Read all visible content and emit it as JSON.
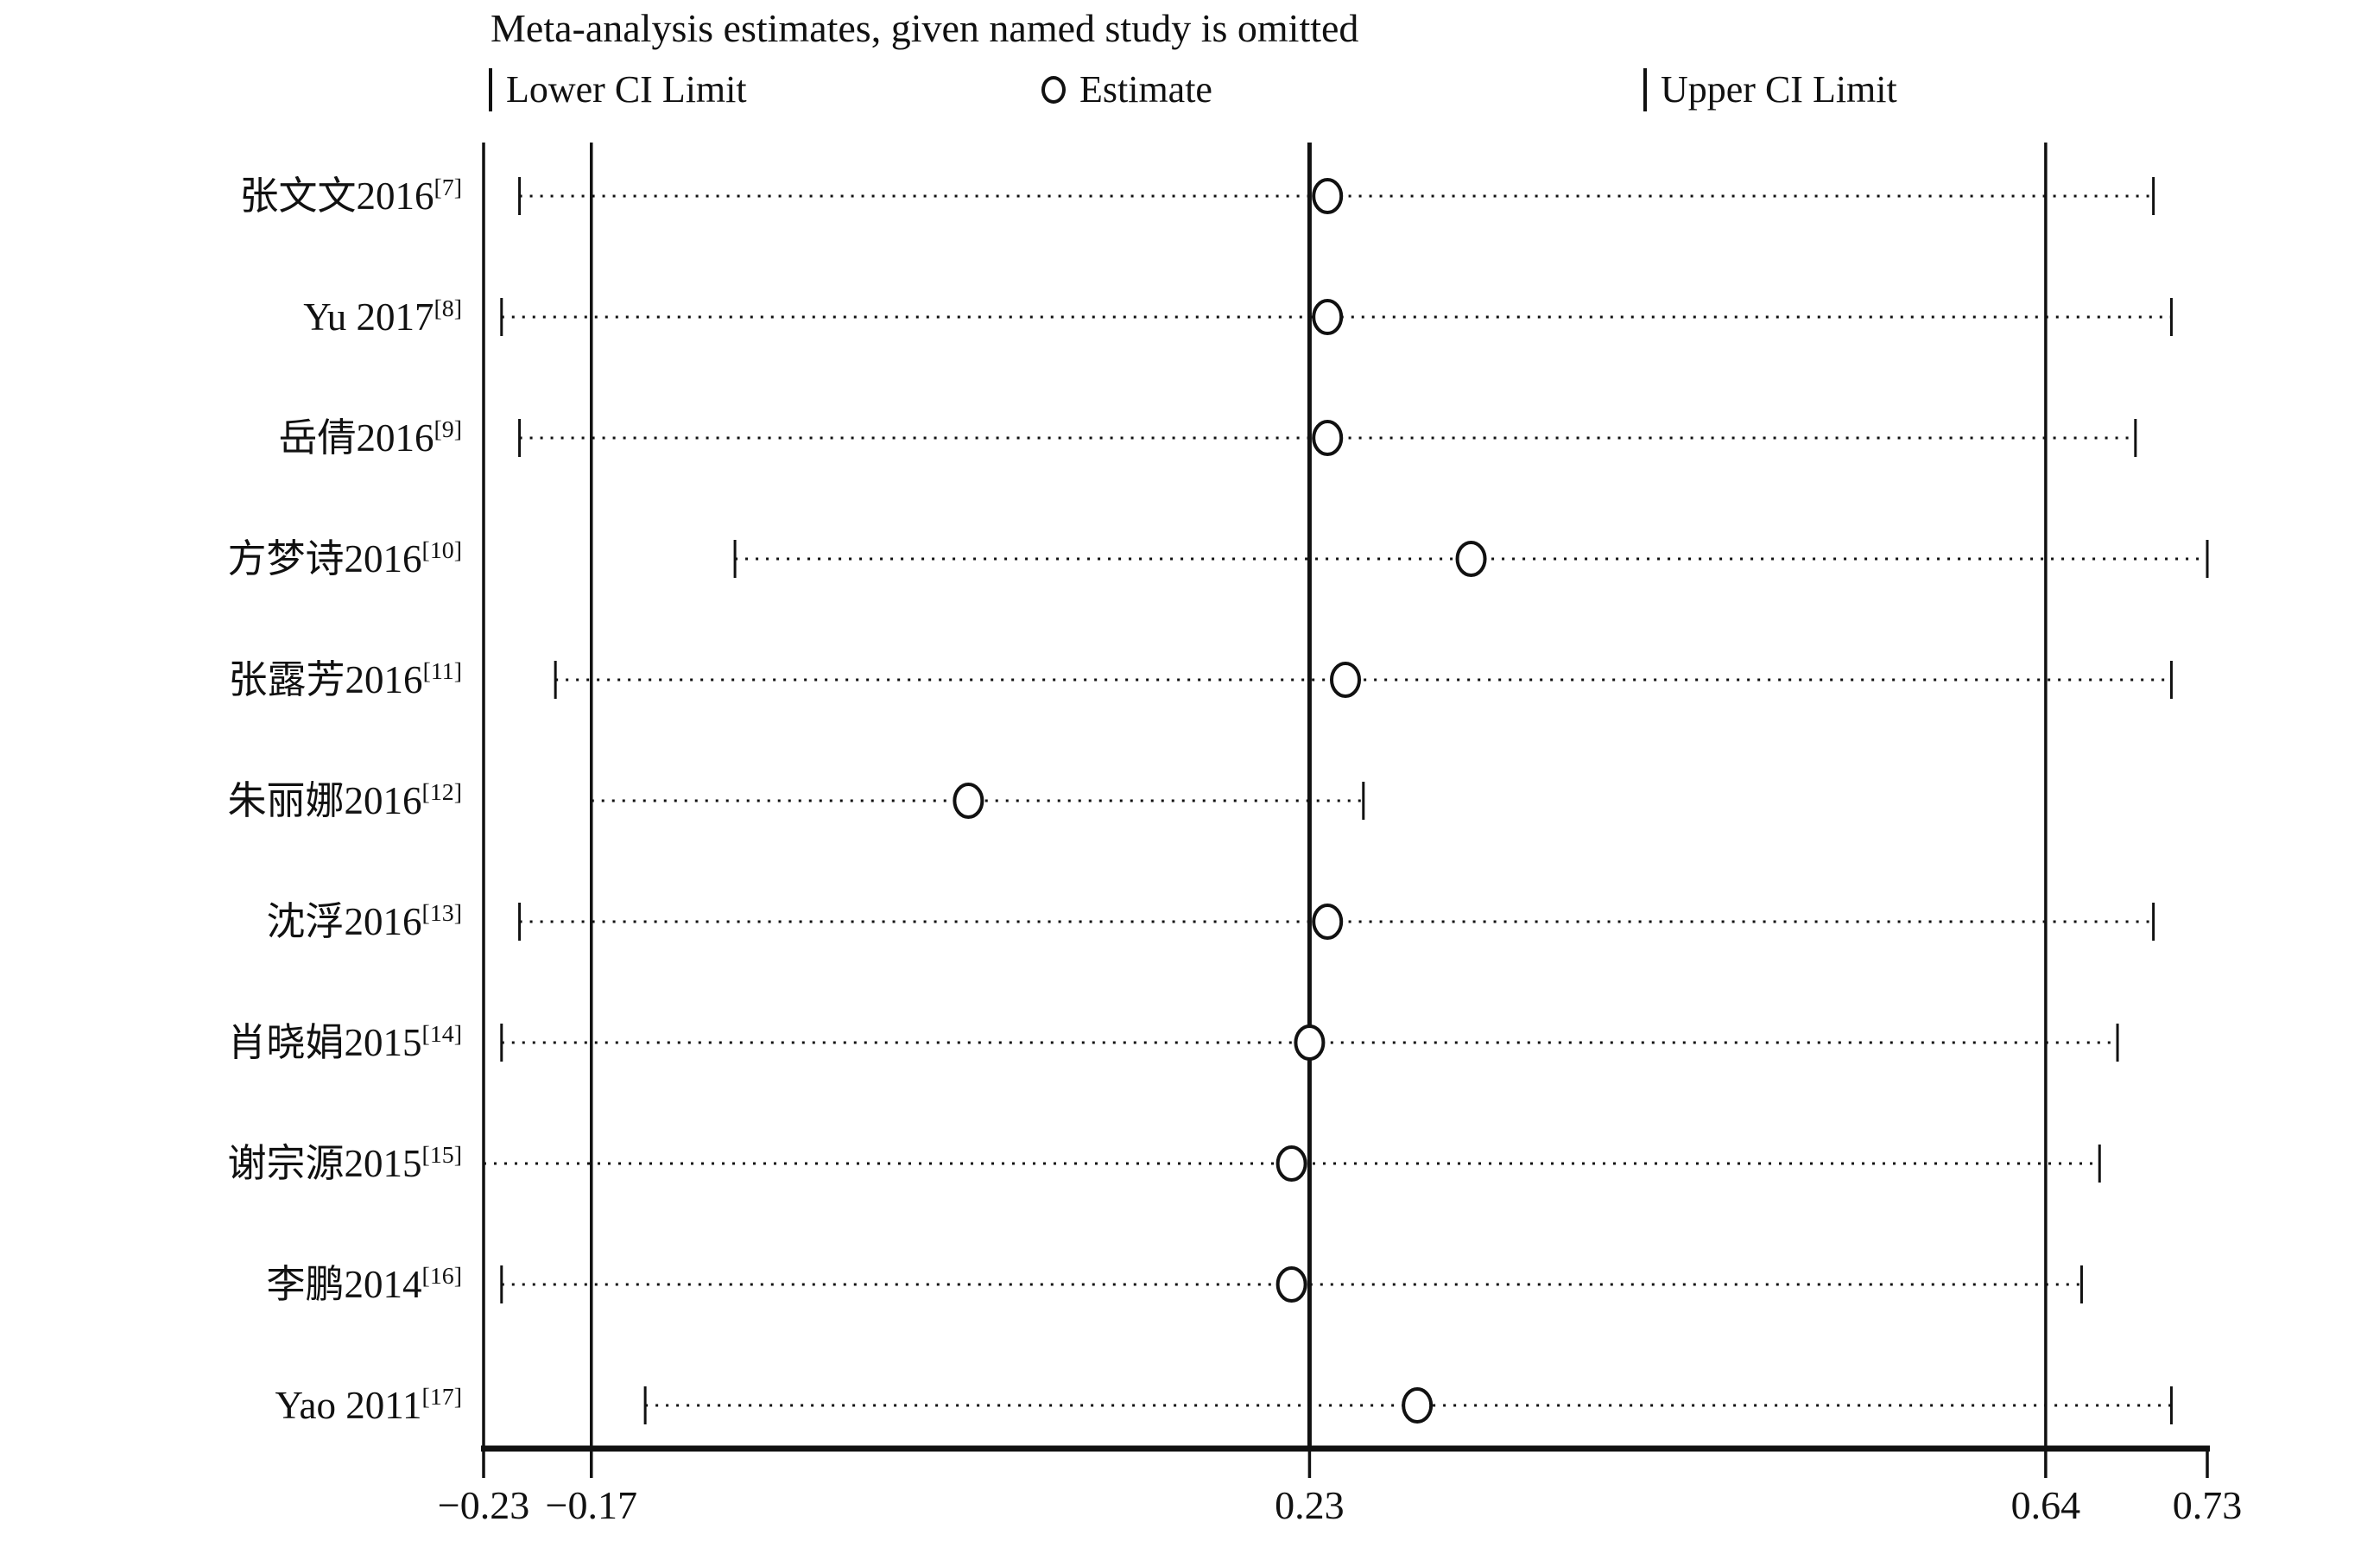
{
  "colors": {
    "ink": "#111111",
    "background": "#ffffff"
  },
  "chart_data": {
    "type": "scatter",
    "subtype": "leave-one-out meta-analysis sensitivity (forest) plot",
    "title": "Meta-analysis estimates, given named study is omitted",
    "legend": {
      "lower": "Lower CI Limit",
      "estimate": "Estimate",
      "upper": "Upper CI Limit"
    },
    "x_axis": {
      "range": [
        -0.23,
        0.73
      ],
      "ticks": [
        -0.23,
        -0.17,
        0.23,
        0.64,
        0.73
      ],
      "tick_labels": [
        "−0.23",
        "−0.17",
        "0.23",
        "0.64",
        "0.73"
      ],
      "gridline_values": [
        -0.23,
        -0.17,
        0.23,
        0.64
      ],
      "grid": true,
      "legend_position": "top"
    },
    "studies": [
      {
        "label": "张文文2016",
        "ref": "[7]",
        "lower": -0.21,
        "estimate": 0.24,
        "upper": 0.7
      },
      {
        "label": "Yu 2017",
        "ref": "[8]",
        "lower": -0.22,
        "estimate": 0.24,
        "upper": 0.71
      },
      {
        "label": "岳倩2016",
        "ref": "[9]",
        "lower": -0.21,
        "estimate": 0.24,
        "upper": 0.69
      },
      {
        "label": "方梦诗2016",
        "ref": "[10]",
        "lower": -0.09,
        "estimate": 0.32,
        "upper": 0.73
      },
      {
        "label": "张露芳2016",
        "ref": "[11]",
        "lower": -0.19,
        "estimate": 0.25,
        "upper": 0.71
      },
      {
        "label": "朱丽娜2016",
        "ref": "[12]",
        "lower": -0.17,
        "estimate": 0.04,
        "upper": 0.26
      },
      {
        "label": "沈浮2016",
        "ref": "[13]",
        "lower": -0.21,
        "estimate": 0.24,
        "upper": 0.7
      },
      {
        "label": "肖晓娟2015",
        "ref": "[14]",
        "lower": -0.22,
        "estimate": 0.23,
        "upper": 0.68
      },
      {
        "label": "谢宗源2015",
        "ref": "[15]",
        "lower": -0.23,
        "estimate": 0.22,
        "upper": 0.67
      },
      {
        "label": "李鹏2014",
        "ref": "[16]",
        "lower": -0.22,
        "estimate": 0.22,
        "upper": 0.66
      },
      {
        "label": "Yao 2011",
        "ref": "[17]",
        "lower": -0.14,
        "estimate": 0.29,
        "upper": 0.71
      }
    ]
  }
}
